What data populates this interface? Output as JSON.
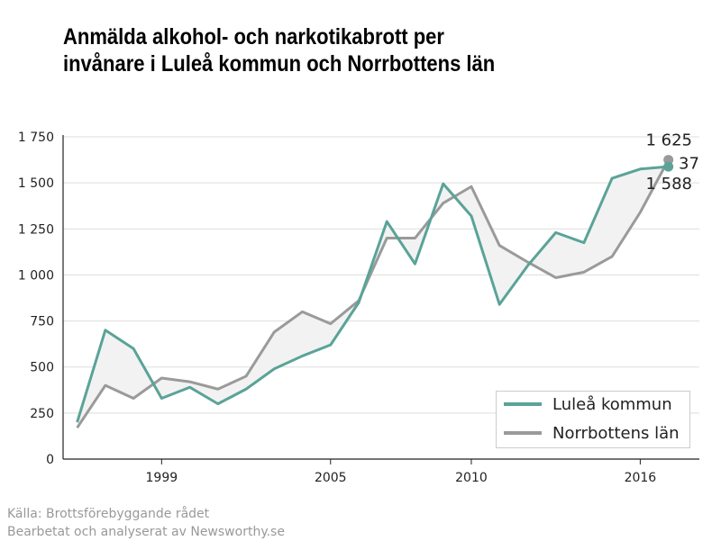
{
  "title": {
    "line1": "Anmälda alkohol- och narkotikabrott per",
    "line2": "invånare i Luleå kommun och Norrbottens län"
  },
  "source": {
    "line1": "Källa: Brottsförebyggande rådet",
    "line2": "Bearbetat och analyserat av Newsworthy.se"
  },
  "colors": {
    "lulea": "#5aa398",
    "norrbotten": "#9a9a9a",
    "band": "#f2f2f2",
    "grid": "#dddddd",
    "axis": "#222222"
  },
  "chart_data": {
    "type": "line",
    "x": [
      1996,
      1997,
      1998,
      1999,
      2000,
      2001,
      2002,
      2003,
      2004,
      2005,
      2006,
      2007,
      2008,
      2009,
      2010,
      2011,
      2012,
      2013,
      2014,
      2015,
      2016,
      2017
    ],
    "series": [
      {
        "name": "Luleå kommun",
        "values": [
          200,
          700,
          600,
          330,
          390,
          300,
          380,
          490,
          560,
          620,
          850,
          1290,
          1060,
          1495,
          1320,
          840,
          1050,
          1230,
          1175,
          1525,
          1575,
          1588
        ]
      },
      {
        "name": "Norrbottens län",
        "values": [
          170,
          400,
          330,
          440,
          420,
          380,
          450,
          690,
          800,
          735,
          860,
          1200,
          1200,
          1390,
          1480,
          1160,
          1070,
          985,
          1015,
          1100,
          1340,
          1625
        ]
      }
    ],
    "y_ticks": [
      0,
      250,
      500,
      750,
      1000,
      1250,
      1500,
      1750
    ],
    "y_tick_labels": [
      "0",
      "250",
      "500",
      "750",
      "1 000",
      "1 250",
      "1 500",
      "1 750"
    ],
    "x_ticks": [
      1999,
      2005,
      2010,
      2016
    ],
    "x_tick_labels": [
      "1999",
      "2005",
      "2010",
      "2016"
    ],
    "ylim": [
      0,
      1750
    ],
    "xlim": [
      1995.5,
      2018.1
    ],
    "end_labels": {
      "norrbotten": "1 625",
      "lulea": "1 588",
      "diff": "37"
    },
    "grid": "horizontal",
    "legend_position": "bottom-right"
  }
}
